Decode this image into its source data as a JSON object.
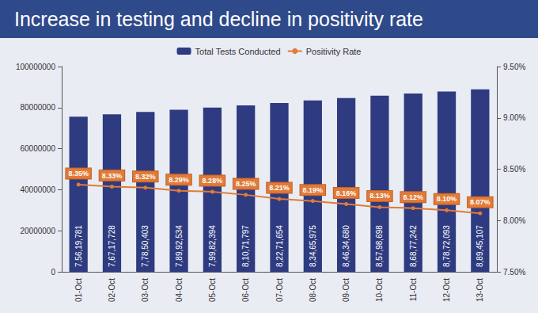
{
  "chart_data": {
    "type": "bar",
    "title": "Increase in testing and decline in positivity rate",
    "categories": [
      "01-Oct",
      "02-Oct",
      "03-Oct",
      "04-Oct",
      "05-Oct",
      "06-Oct",
      "07-Oct",
      "08-Oct",
      "09-Oct",
      "10-Oct",
      "11-Oct",
      "12-Oct",
      "13-Oct"
    ],
    "series": [
      {
        "name": "Total Tests Conducted",
        "type": "bar",
        "color": "#2e3b80",
        "values": [
          75619781,
          76717728,
          77850403,
          78992534,
          79982394,
          81071797,
          82271654,
          83465975,
          84634680,
          85798698,
          86877242,
          87872093,
          88945107
        ],
        "value_labels": [
          "7,56,19,781",
          "7,67,17,728",
          "7,78,50,403",
          "7,89,92,534",
          "7,99,82,394",
          "8,10,71,797",
          "8,22,71,654",
          "8,34,65,975",
          "8,46,34,680",
          "8,57,98,698",
          "8,68,77,242",
          "8,78,72,093",
          "8,89,45,107"
        ]
      },
      {
        "name": "Positivity Rate",
        "type": "line",
        "axis": "y2",
        "color": "#e07b39",
        "marker": "circle",
        "values": [
          8.35,
          8.33,
          8.32,
          8.29,
          8.28,
          8.25,
          8.21,
          8.19,
          8.16,
          8.13,
          8.12,
          8.1,
          8.07
        ],
        "value_labels": [
          "8.35%",
          "8.33%",
          "8.32%",
          "8.29%",
          "8.28%",
          "8.25%",
          "8.21%",
          "8.19%",
          "8.16%",
          "8.13%",
          "8.12%",
          "8.10%",
          "8.07%"
        ]
      }
    ],
    "ylim": [
      0,
      100000000
    ],
    "yticks": [
      0,
      20000000,
      40000000,
      60000000,
      80000000,
      100000000
    ],
    "y2lim": [
      7.5,
      9.5
    ],
    "y2ticks": [
      {
        "value": 7.5,
        "label": "7.50%"
      },
      {
        "value": 8.0,
        "label": "8.00%"
      },
      {
        "value": 8.5,
        "label": "8.50%"
      },
      {
        "value": 9.0,
        "label": "9.00%"
      },
      {
        "value": 9.5,
        "label": "9.50%"
      }
    ],
    "grid": false,
    "legend": "top",
    "data_labels": true
  }
}
